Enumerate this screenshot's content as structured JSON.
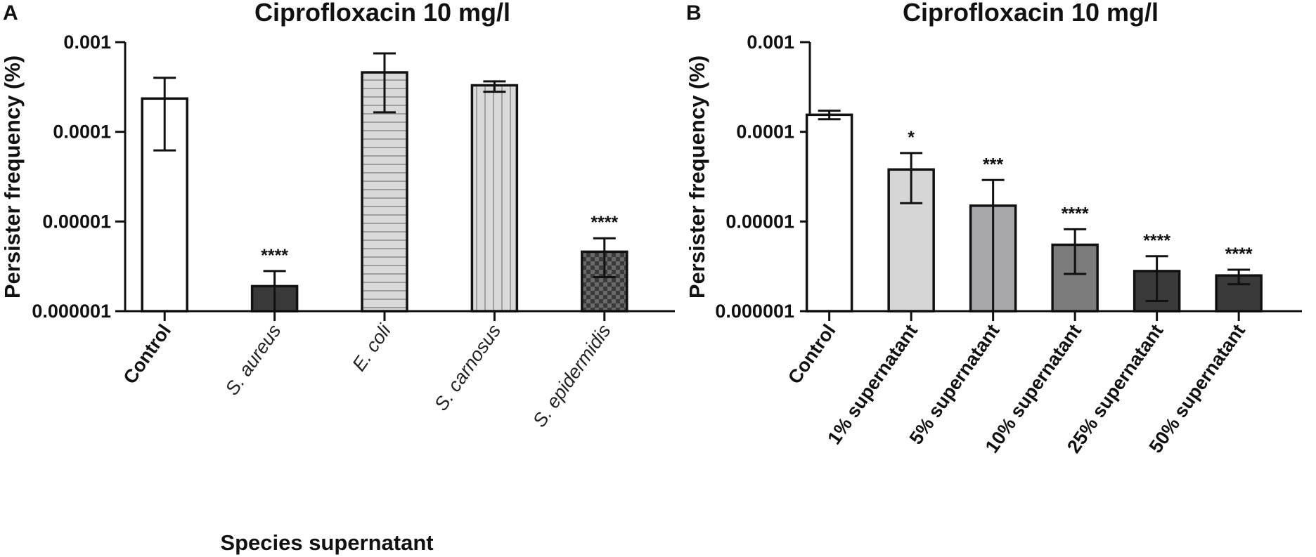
{
  "chart_data": [
    {
      "panel": "A",
      "type": "bar",
      "title": "Ciprofloxacin 10 mg/l",
      "ylabel": "Persister frequency (%)",
      "xlabel": "Species supernatant",
      "yscale": "log",
      "ylim": [
        1e-06,
        0.001
      ],
      "yticks": [
        1e-06,
        1e-05,
        0.0001,
        0.001
      ],
      "ytick_labels": [
        "0.000001",
        "0.00001",
        "0.0001",
        "0.001"
      ],
      "categories": [
        "Control",
        "S. aureus",
        "E. coli",
        "S. carnosus",
        "S. epidermidis"
      ],
      "category_styles": [
        "bold",
        "italic",
        "italic",
        "italic",
        "italic"
      ],
      "values": [
        0.000235,
        1.9e-06,
        0.00046,
        0.00033,
        4.6e-06
      ],
      "error_low": [
        6.2e-05,
        1e-06,
        0.000165,
        0.00028,
        2.4e-06
      ],
      "error_high": [
        0.0004,
        2.8e-06,
        0.00075,
        0.000365,
        6.5e-06
      ],
      "fills": [
        "white",
        "dark",
        "hlines",
        "vlines",
        "checker"
      ],
      "significance": [
        "",
        "****",
        "",
        "",
        "****"
      ]
    },
    {
      "panel": "B",
      "type": "bar",
      "title": "Ciprofloxacin 10 mg/l",
      "ylabel": "Persister frequency (%)",
      "xlabel": "",
      "yscale": "log",
      "ylim": [
        1e-06,
        0.001
      ],
      "yticks": [
        1e-06,
        1e-05,
        0.0001,
        0.001
      ],
      "ytick_labels": [
        "0.000001",
        "0.00001",
        "0.0001",
        "0.001"
      ],
      "categories": [
        "Control",
        "1% supernatant",
        "5% supernatant",
        "10% supernatant",
        "25% supernatant",
        "50% supernatant"
      ],
      "category_styles": [
        "bold",
        "bold",
        "bold",
        "bold",
        "bold",
        "bold"
      ],
      "values": [
        0.000155,
        3.8e-05,
        1.5e-05,
        5.5e-06,
        2.8e-06,
        2.5e-06
      ],
      "error_low": [
        0.000138,
        1.6e-05,
        1e-06,
        2.6e-06,
        1.3e-06,
        2e-06
      ],
      "error_high": [
        0.000172,
        5.8e-05,
        2.9e-05,
        8.2e-06,
        4.1e-06,
        2.9e-06
      ],
      "fills": [
        "#ffffff",
        "#d6d6d6",
        "#a8a8aa",
        "#7c7c7c",
        "#3a3a3a",
        "#3a3a3a"
      ],
      "significance": [
        "",
        "*",
        "***",
        "****",
        "****",
        "****"
      ]
    }
  ]
}
